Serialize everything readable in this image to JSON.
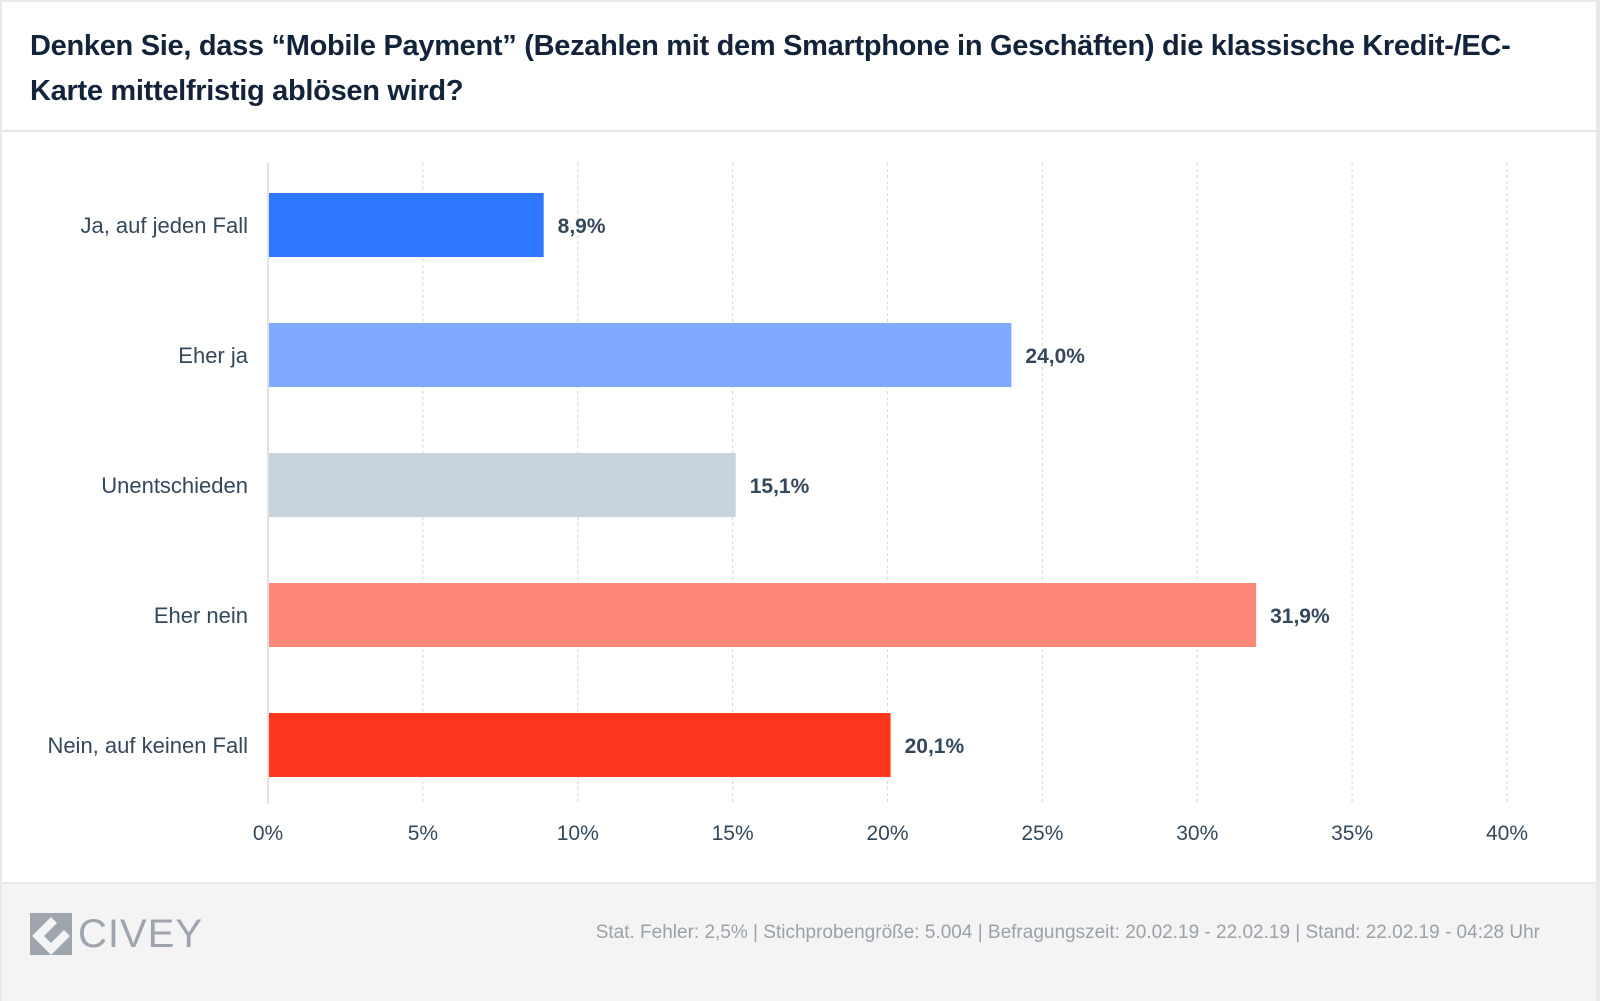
{
  "header": {
    "title": "Denken Sie, dass “Mobile Payment” (Bezahlen mit dem Smartphone in Geschäften) die klassische Kredit-/EC-Karte mittelfristig ablösen wird?"
  },
  "chart_data": {
    "type": "bar",
    "orientation": "horizontal",
    "title": "Denken Sie, dass “Mobile Payment” (Bezahlen mit dem Smartphone in Geschäften) die klassische Kredit-/EC-Karte mittelfristig ablösen wird?",
    "categories": [
      "Ja, auf jeden Fall",
      "Eher ja",
      "Unentschieden",
      "Eher nein",
      "Nein, auf keinen Fall"
    ],
    "values": [
      8.9,
      24.0,
      15.1,
      31.9,
      20.1
    ],
    "value_labels": [
      "8,9%",
      "24,0%",
      "15,1%",
      "31,9%",
      "20,1%"
    ],
    "colors": [
      "#2e77ff",
      "#7faaff",
      "#c7d4de",
      "#fd8778",
      "#fc361d"
    ],
    "xlabel": "",
    "ylabel": "",
    "xlim": [
      0,
      40
    ],
    "x_ticks": [
      0,
      5,
      10,
      15,
      20,
      25,
      30,
      35,
      40
    ],
    "x_tick_labels": [
      "0%",
      "5%",
      "10%",
      "15%",
      "20%",
      "25%",
      "30%",
      "35%",
      "40%"
    ],
    "grid": true,
    "legend": "none"
  },
  "footer": {
    "brand": "CIVEY",
    "meta": "Stat. Fehler: 2,5% | Stichprobengröße: 5.004 | Befragungszeit: 20.02.19 - 22.02.19 | Stand: 22.02.19 - 04:28 Uhr"
  },
  "colors": {
    "title": "#12233a",
    "text": "#34485c",
    "footer_text": "#9aa1a9",
    "footer_bg": "#f4f4f4"
  }
}
